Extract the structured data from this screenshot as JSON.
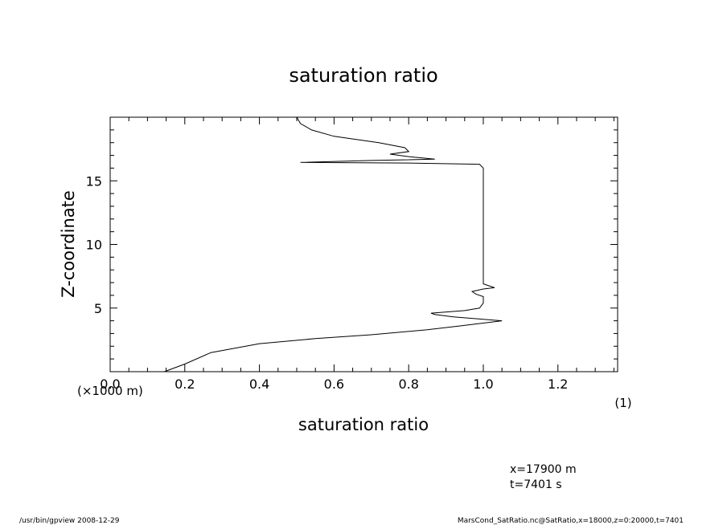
{
  "chart_data": {
    "type": "line",
    "title": "saturation ratio",
    "xlabel": "saturation ratio",
    "ylabel": "Z-coordinate",
    "x_unit": "(1)",
    "y_unit": "(×1000 m)",
    "xlim": [
      0.0,
      1.36
    ],
    "ylim": [
      0.0,
      20.0
    ],
    "x_ticks": [
      0.0,
      0.2,
      0.4,
      0.6,
      0.8,
      1.0,
      1.2
    ],
    "x_tick_labels": [
      "0.0",
      "0.2",
      "0.4",
      "0.6",
      "0.8",
      "1.0",
      "1.2"
    ],
    "y_ticks": [
      5,
      10,
      15
    ],
    "y_tick_labels": [
      "5",
      "10",
      "15"
    ],
    "grid": false,
    "series": [
      {
        "points": [
          [
            0.145,
            0.0
          ],
          [
            0.2,
            0.6
          ],
          [
            0.27,
            1.5
          ],
          [
            0.4,
            2.2
          ],
          [
            0.55,
            2.6
          ],
          [
            0.7,
            2.9
          ],
          [
            0.85,
            3.3
          ],
          [
            0.94,
            3.6
          ],
          [
            1.05,
            4.0
          ],
          [
            0.92,
            4.3
          ],
          [
            0.87,
            4.5
          ],
          [
            0.86,
            4.6
          ],
          [
            0.95,
            4.8
          ],
          [
            0.99,
            5.0
          ],
          [
            1.0,
            5.4
          ],
          [
            1.0,
            5.7
          ],
          [
            1.0,
            5.9
          ],
          [
            0.98,
            6.1
          ],
          [
            0.97,
            6.3
          ],
          [
            1.0,
            6.5
          ],
          [
            1.03,
            6.6
          ],
          [
            1.0,
            6.9
          ],
          [
            1.0,
            8.0
          ],
          [
            1.0,
            10.0
          ],
          [
            1.0,
            12.0
          ],
          [
            1.0,
            14.0
          ],
          [
            1.0,
            16.0
          ],
          [
            0.99,
            16.3
          ],
          [
            0.8,
            16.4
          ],
          [
            0.51,
            16.45
          ],
          [
            0.7,
            16.6
          ],
          [
            0.87,
            16.7
          ],
          [
            0.8,
            16.9
          ],
          [
            0.75,
            17.1
          ],
          [
            0.8,
            17.3
          ],
          [
            0.79,
            17.6
          ],
          [
            0.72,
            18.0
          ],
          [
            0.6,
            18.5
          ],
          [
            0.54,
            19.0
          ],
          [
            0.51,
            19.5
          ],
          [
            0.5,
            20.0
          ]
        ]
      }
    ]
  },
  "annotations": {
    "x_position": "x=17900 m",
    "time": "t=7401 s",
    "footer_left": "/usr/bin/gpview   2008-12-29",
    "footer_right": "MarsCond_SatRatio.nc@SatRatio,x=18000,z=0:20000,t=7401"
  }
}
